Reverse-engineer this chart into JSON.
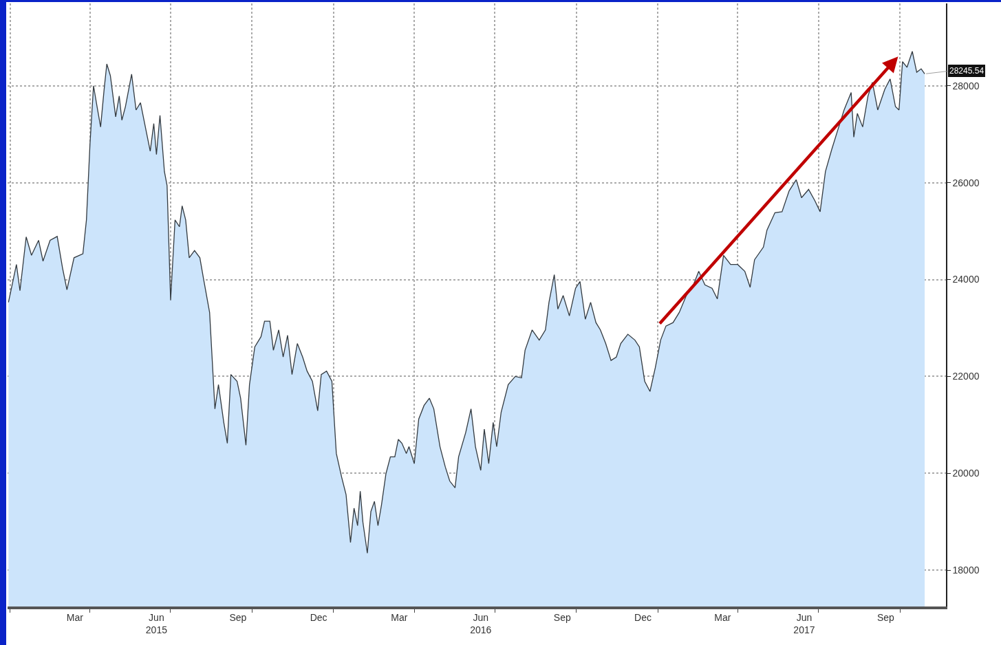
{
  "chart_data": {
    "type": "area",
    "x": [
      "2014-12-30",
      "2015-01-08",
      "2015-01-12",
      "2015-01-19",
      "2015-01-25",
      "2015-02-02",
      "2015-02-07",
      "2015-02-15",
      "2015-02-23",
      "2015-03-01",
      "2015-03-06",
      "2015-03-14",
      "2015-03-24",
      "2015-03-28",
      "2015-04-01",
      "2015-04-05",
      "2015-04-09",
      "2015-04-13",
      "2015-04-17",
      "2015-04-20",
      "2015-04-24",
      "2015-04-30",
      "2015-05-04",
      "2015-05-07",
      "2015-05-11",
      "2015-05-18",
      "2015-05-23",
      "2015-05-28",
      "2015-06-04",
      "2015-06-08",
      "2015-06-12",
      "2015-06-15",
      "2015-06-19",
      "2015-06-24",
      "2015-06-27",
      "2015-07-01",
      "2015-07-06",
      "2015-07-11",
      "2015-07-14",
      "2015-07-18",
      "2015-07-22",
      "2015-07-28",
      "2015-08-03",
      "2015-08-07",
      "2015-08-14",
      "2015-08-20",
      "2015-08-24",
      "2015-08-30",
      "2015-09-03",
      "2015-09-07",
      "2015-09-14",
      "2015-09-18",
      "2015-09-24",
      "2015-09-28",
      "2015-10-04",
      "2015-10-11",
      "2015-10-15",
      "2015-10-21",
      "2015-10-25",
      "2015-10-31",
      "2015-11-05",
      "2015-11-10",
      "2015-11-15",
      "2015-11-21",
      "2015-11-27",
      "2015-12-02",
      "2015-12-08",
      "2015-12-14",
      "2015-12-18",
      "2015-12-24",
      "2015-12-30",
      "2016-01-04",
      "2016-01-10",
      "2016-01-15",
      "2016-01-20",
      "2016-01-24",
      "2016-01-28",
      "2016-01-31",
      "2016-02-03",
      "2016-02-08",
      "2016-02-12",
      "2016-02-16",
      "2016-02-20",
      "2016-02-24",
      "2016-02-29",
      "2016-03-05",
      "2016-03-10",
      "2016-03-14",
      "2016-03-18",
      "2016-03-23",
      "2016-03-26",
      "2016-04-01",
      "2016-04-06",
      "2016-04-12",
      "2016-04-18",
      "2016-04-23",
      "2016-04-30",
      "2016-05-06",
      "2016-05-11",
      "2016-05-17",
      "2016-05-21",
      "2016-05-29",
      "2016-06-04",
      "2016-06-09",
      "2016-06-15",
      "2016-06-19",
      "2016-06-24",
      "2016-06-29",
      "2016-07-03",
      "2016-07-08",
      "2016-07-16",
      "2016-07-24",
      "2016-07-31",
      "2016-08-04",
      "2016-08-12",
      "2016-08-20",
      "2016-08-27",
      "2016-08-31",
      "2016-09-06",
      "2016-09-10",
      "2016-09-16",
      "2016-09-23",
      "2016-09-30",
      "2016-10-05",
      "2016-10-11",
      "2016-10-17",
      "2016-10-23",
      "2016-10-28",
      "2016-11-03",
      "2016-11-09",
      "2016-11-15",
      "2016-11-20",
      "2016-11-28",
      "2016-12-06",
      "2016-12-11",
      "2016-12-17",
      "2016-12-23",
      "2016-12-29",
      "2017-01-04",
      "2017-01-10",
      "2017-01-18",
      "2017-01-25",
      "2017-02-02",
      "2017-02-10",
      "2017-02-16",
      "2017-02-23",
      "2017-03-03",
      "2017-03-09",
      "2017-03-16",
      "2017-03-24",
      "2017-04-01",
      "2017-04-09",
      "2017-04-15",
      "2017-04-20",
      "2017-04-30",
      "2017-05-04",
      "2017-05-13",
      "2017-05-21",
      "2017-05-29",
      "2017-06-06",
      "2017-06-12",
      "2017-06-20",
      "2017-06-27",
      "2017-07-03",
      "2017-07-09",
      "2017-07-16",
      "2017-07-24",
      "2017-07-30",
      "2017-08-07",
      "2017-08-10",
      "2017-08-14",
      "2017-08-20",
      "2017-08-26",
      "2017-08-31",
      "2017-09-06",
      "2017-09-14",
      "2017-09-20",
      "2017-09-26",
      "2017-09-30",
      "2017-10-04",
      "2017-10-09",
      "2017-10-15",
      "2017-10-20",
      "2017-10-25",
      "2017-10-29"
    ],
    "series": [
      {
        "color": "#cce4fb",
        "values": [
          23530,
          24310,
          23770,
          24880,
          24500,
          24810,
          24380,
          24810,
          24890,
          24240,
          23790,
          24450,
          24530,
          25230,
          26790,
          28000,
          27570,
          27150,
          27930,
          28450,
          28210,
          27360,
          27790,
          27290,
          27570,
          28240,
          27500,
          27650,
          27010,
          26650,
          27220,
          26580,
          27390,
          26230,
          25940,
          23570,
          25230,
          25090,
          25520,
          25230,
          24450,
          24600,
          24450,
          24030,
          23320,
          21330,
          21830,
          21050,
          20620,
          22040,
          21900,
          21550,
          20580,
          21830,
          22610,
          22820,
          23140,
          23140,
          22540,
          22960,
          22400,
          22850,
          22040,
          22680,
          22400,
          22110,
          21900,
          21290,
          22040,
          22110,
          21900,
          20410,
          19920,
          19560,
          18570,
          19280,
          18920,
          19630,
          18990,
          18350,
          19210,
          19420,
          18920,
          19350,
          19990,
          20340,
          20340,
          20700,
          20620,
          20410,
          20550,
          20200,
          21120,
          21400,
          21550,
          21330,
          20550,
          20130,
          19840,
          19700,
          20340,
          20840,
          21330,
          20550,
          20060,
          20910,
          20200,
          21050,
          20550,
          21260,
          21830,
          22000,
          21970,
          22540,
          22960,
          22750,
          22960,
          23530,
          24100,
          23390,
          23670,
          23250,
          23820,
          23960,
          23180,
          23530,
          23110,
          22960,
          22680,
          22330,
          22400,
          22680,
          22870,
          22750,
          22610,
          21900,
          21690,
          22180,
          22750,
          23040,
          23110,
          23320,
          23670,
          23890,
          24170,
          23890,
          23820,
          23600,
          24500,
          24310,
          24310,
          24170,
          23840,
          24410,
          24670,
          25020,
          25380,
          25400,
          25830,
          26060,
          25690,
          25860,
          25630,
          25400,
          26230,
          26680,
          27150,
          27500,
          27860,
          26940,
          27430,
          27150,
          27790,
          28070,
          27500,
          27930,
          28140,
          27570,
          27500,
          28500,
          28380,
          28710,
          28280,
          28350,
          28245.54
        ]
      }
    ],
    "xlim": [
      "2014-12-29",
      "2017-11-22"
    ],
    "xticks": [
      {
        "value": "2015-01-01",
        "label": null
      },
      {
        "value": "2015-03-15",
        "label": "Mar"
      },
      {
        "value": "2015-04-01",
        "label": null
      },
      {
        "value": "2015-06-15",
        "label": "Jun\n2015"
      },
      {
        "value": "2015-07-01",
        "label": null
      },
      {
        "value": "2015-09-15",
        "label": "Sep"
      },
      {
        "value": "2015-10-01",
        "label": null
      },
      {
        "value": "2015-12-15",
        "label": "Dec"
      },
      {
        "value": "2016-01-01",
        "label": null
      },
      {
        "value": "2016-03-15",
        "label": "Mar"
      },
      {
        "value": "2016-04-01",
        "label": null
      },
      {
        "value": "2016-06-15",
        "label": "Jun\n2016"
      },
      {
        "value": "2016-07-01",
        "label": null
      },
      {
        "value": "2016-09-15",
        "label": "Sep"
      },
      {
        "value": "2016-10-01",
        "label": null
      },
      {
        "value": "2016-12-15",
        "label": "Dec"
      },
      {
        "value": "2017-01-01",
        "label": null
      },
      {
        "value": "2017-03-15",
        "label": "Mar"
      },
      {
        "value": "2017-04-01",
        "label": null
      },
      {
        "value": "2017-06-15",
        "label": "Jun\n2017"
      },
      {
        "value": "2017-07-01",
        "label": null
      },
      {
        "value": "2017-09-15",
        "label": "Sep"
      },
      {
        "value": "2017-10-01",
        "label": null
      }
    ],
    "ylim": [
      17250,
      29700
    ],
    "yticks": [
      18000,
      20000,
      22000,
      24000,
      26000,
      28000
    ],
    "grid": true,
    "annotations": [
      {
        "text": "28245.54",
        "x": "2017-10-29",
        "y": 28245.54
      }
    ]
  }
}
